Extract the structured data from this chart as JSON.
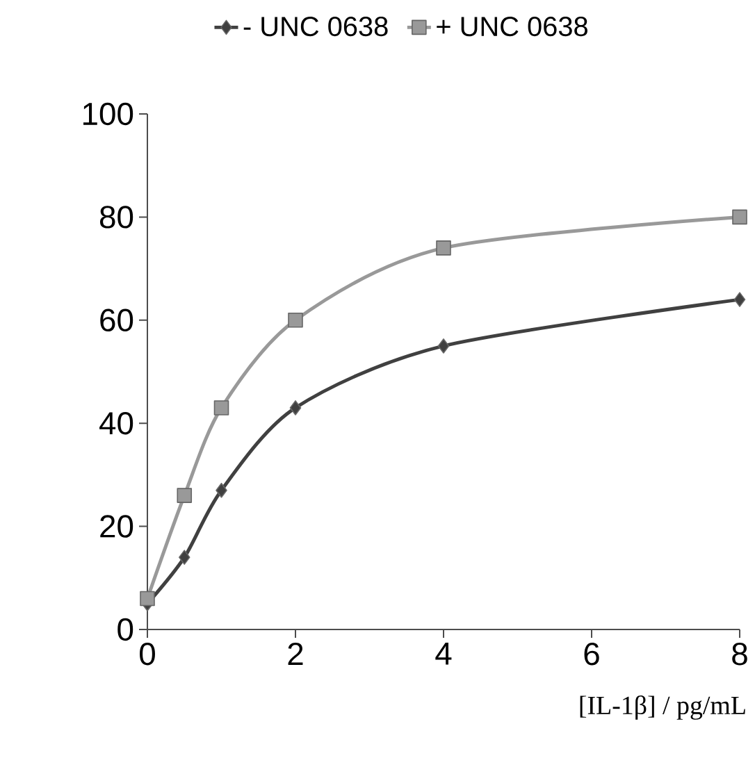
{
  "chart_data": {
    "type": "line",
    "xlabel": "[IL-1β] / pg/mL",
    "series": [
      {
        "name": "- UNC 0638",
        "color": "#404040",
        "marker": "diamond",
        "x": [
          0,
          0.5,
          1,
          2,
          4,
          8
        ],
        "values": [
          5,
          14,
          27,
          43,
          55,
          64
        ]
      },
      {
        "name": "+ UNC 0638",
        "color": "#999999",
        "marker": "square",
        "x": [
          0,
          0.5,
          1,
          2,
          4,
          8
        ],
        "values": [
          6,
          26,
          43,
          60,
          74,
          80
        ]
      }
    ],
    "xlim": [
      0,
      8
    ],
    "xticks": [
      0,
      2,
      4,
      6,
      8
    ],
    "ylim": [
      0,
      100
    ],
    "yticks": [
      0,
      20,
      40,
      60,
      80,
      100
    ],
    "grid": false,
    "legend": "top",
    "line_style": "solid"
  }
}
